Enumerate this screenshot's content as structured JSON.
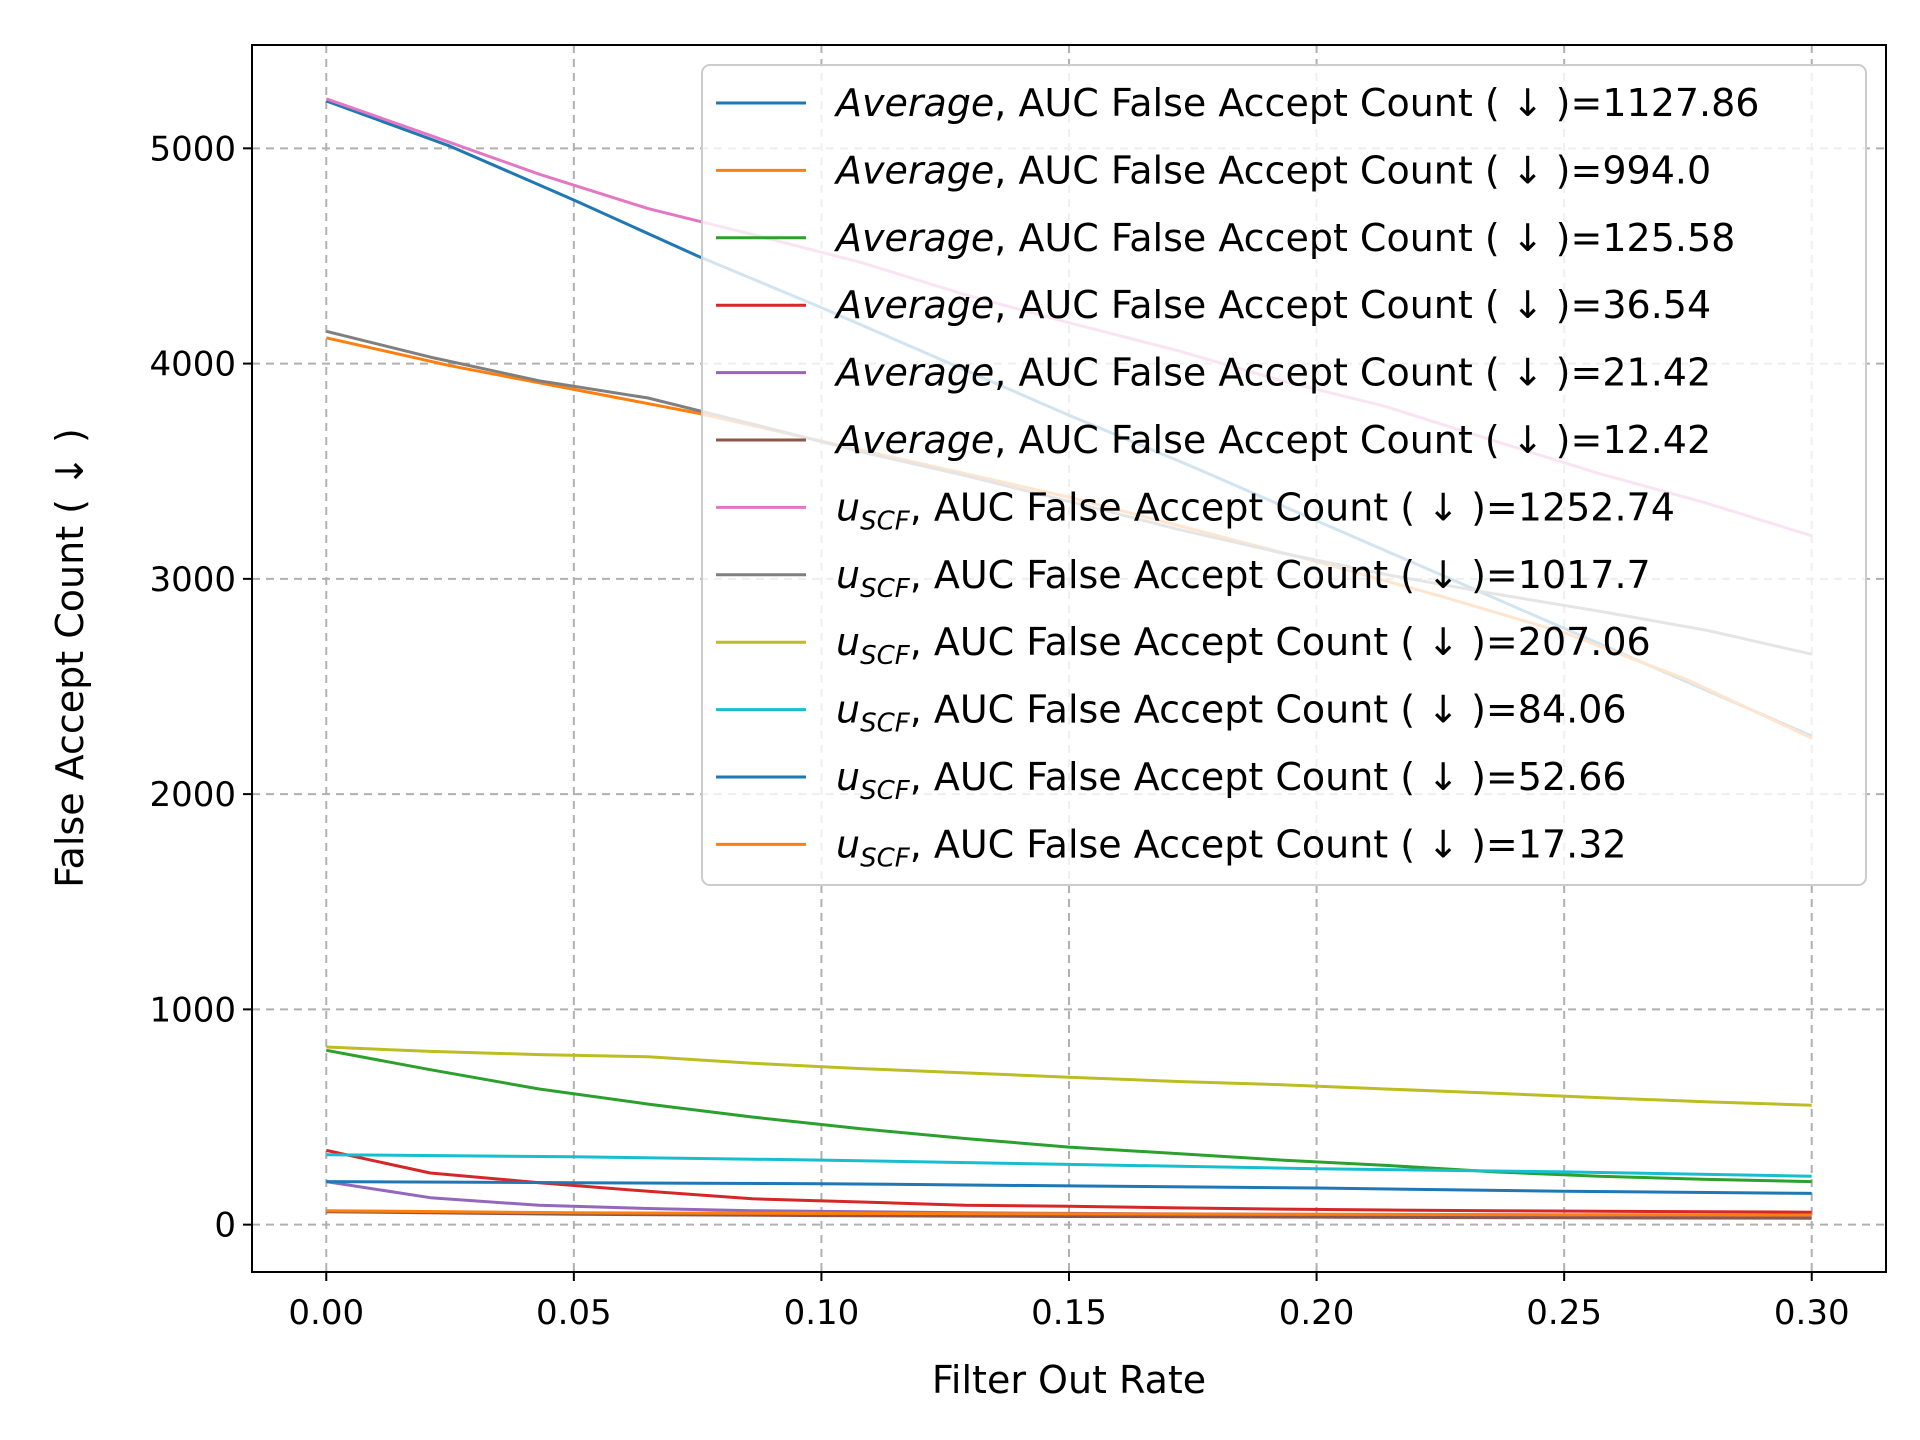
{
  "chart_data": {
    "type": "line",
    "xlabel": "Filter Out Rate",
    "ylabel": "False Accept Count ( ↓ )",
    "xlim": [
      -0.015,
      0.315
    ],
    "ylim": [
      -220,
      5480
    ],
    "xticks": [
      0.0,
      0.05,
      0.1,
      0.15,
      0.2,
      0.25,
      0.3
    ],
    "xtick_labels": [
      "0.00",
      "0.05",
      "0.10",
      "0.15",
      "0.20",
      "0.25",
      "0.30"
    ],
    "yticks": [
      0,
      1000,
      2000,
      3000,
      4000,
      5000
    ],
    "ytick_labels": [
      "0",
      "1000",
      "2000",
      "3000",
      "4000",
      "5000"
    ],
    "grid": true,
    "legend_position": "upper-right",
    "series": [
      {
        "prefix": "Average",
        "sub": "",
        "name": ", AUC False Accept Count ( ↓ )=1127.86",
        "color": "#1f77b4",
        "x": [
          0.0,
          0.025,
          0.05,
          0.075,
          0.1,
          0.125,
          0.15,
          0.175,
          0.2,
          0.225,
          0.25,
          0.275,
          0.3
        ],
        "y": [
          5220,
          5010,
          4760,
          4500,
          4260,
          4010,
          3760,
          3520,
          3270,
          3020,
          2770,
          2520,
          2270
        ]
      },
      {
        "prefix": "Average",
        "sub": "",
        "name": ", AUC False Accept Count ( ↓ )=994.0",
        "color": "#ff7f0e",
        "x": [
          0.0,
          0.025,
          0.05,
          0.075,
          0.1,
          0.125,
          0.15,
          0.175,
          0.2,
          0.225,
          0.25,
          0.275,
          0.3
        ],
        "y": [
          4120,
          3990,
          3880,
          3770,
          3640,
          3510,
          3380,
          3230,
          3080,
          2920,
          2750,
          2530,
          2260
        ]
      },
      {
        "prefix": "Average",
        "sub": "",
        "name": ", AUC False Accept Count ( ↓ )=125.58",
        "color": "#2ca02c",
        "x": [
          0.0,
          0.021,
          0.043,
          0.065,
          0.086,
          0.108,
          0.129,
          0.15,
          0.172,
          0.193,
          0.214,
          0.236,
          0.257,
          0.279,
          0.3
        ],
        "y": [
          810,
          720,
          630,
          560,
          500,
          445,
          400,
          360,
          330,
          300,
          275,
          245,
          225,
          210,
          200
        ]
      },
      {
        "prefix": "Average",
        "sub": "",
        "name": ", AUC False Accept Count ( ↓ )=36.54",
        "color": "#d62728",
        "x": [
          0.0,
          0.021,
          0.043,
          0.065,
          0.086,
          0.108,
          0.129,
          0.15,
          0.172,
          0.193,
          0.214,
          0.236,
          0.257,
          0.279,
          0.3
        ],
        "y": [
          345,
          240,
          195,
          155,
          120,
          105,
          90,
          85,
          78,
          72,
          68,
          65,
          62,
          60,
          58
        ]
      },
      {
        "prefix": "Average",
        "sub": "",
        "name": ", AUC False Accept Count ( ↓ )=21.42",
        "color": "#9467bd",
        "x": [
          0.0,
          0.021,
          0.043,
          0.065,
          0.086,
          0.108,
          0.129,
          0.15,
          0.172,
          0.193,
          0.214,
          0.236,
          0.257,
          0.279,
          0.3
        ],
        "y": [
          200,
          125,
          90,
          75,
          65,
          60,
          55,
          52,
          50,
          48,
          46,
          45,
          44,
          43,
          42
        ]
      },
      {
        "prefix": "Average",
        "sub": "",
        "name": ", AUC False Accept Count ( ↓ )=12.42",
        "color": "#8c564b",
        "x": [
          0.0,
          0.05,
          0.1,
          0.15,
          0.2,
          0.25,
          0.3
        ],
        "y": [
          60,
          48,
          42,
          38,
          35,
          32,
          30
        ]
      },
      {
        "prefix": "u",
        "sub": "SCF",
        "name": ", AUC False Accept Count ( ↓ )=1252.74",
        "color": "#e377c2",
        "x": [
          0.0,
          0.021,
          0.043,
          0.065,
          0.086,
          0.108,
          0.129,
          0.15,
          0.172,
          0.193,
          0.214,
          0.236,
          0.257,
          0.279,
          0.3
        ],
        "y": [
          5230,
          5060,
          4880,
          4720,
          4600,
          4470,
          4320,
          4190,
          4060,
          3920,
          3800,
          3640,
          3490,
          3350,
          3200
        ]
      },
      {
        "prefix": "u",
        "sub": "SCF",
        "name": ", AUC False Accept Count ( ↓ )=1017.7",
        "color": "#7f7f7f",
        "x": [
          0.0,
          0.021,
          0.043,
          0.065,
          0.086,
          0.108,
          0.129,
          0.15,
          0.172,
          0.193,
          0.214,
          0.236,
          0.257,
          0.279,
          0.3
        ],
        "y": [
          4150,
          4030,
          3920,
          3840,
          3720,
          3590,
          3480,
          3360,
          3230,
          3120,
          3020,
          2930,
          2850,
          2760,
          2650
        ]
      },
      {
        "prefix": "u",
        "sub": "SCF",
        "name": ", AUC False Accept Count ( ↓ )=207.06",
        "color": "#bcbd22",
        "x": [
          0.0,
          0.021,
          0.043,
          0.065,
          0.086,
          0.108,
          0.129,
          0.15,
          0.172,
          0.193,
          0.214,
          0.236,
          0.257,
          0.279,
          0.3
        ],
        "y": [
          825,
          805,
          790,
          780,
          750,
          725,
          705,
          685,
          665,
          650,
          630,
          610,
          590,
          570,
          555
        ]
      },
      {
        "prefix": "u",
        "sub": "SCF",
        "name": ", AUC False Accept Count ( ↓ )=84.06",
        "color": "#17becf",
        "x": [
          0.0,
          0.05,
          0.1,
          0.15,
          0.2,
          0.25,
          0.3
        ],
        "y": [
          325,
          315,
          300,
          280,
          260,
          245,
          225
        ]
      },
      {
        "prefix": "u",
        "sub": "SCF",
        "name": ", AUC False Accept Count ( ↓ )=52.66",
        "color": "#1f77b4",
        "x": [
          0.0,
          0.05,
          0.1,
          0.15,
          0.2,
          0.25,
          0.3
        ],
        "y": [
          200,
          195,
          190,
          180,
          170,
          155,
          145
        ]
      },
      {
        "prefix": "u",
        "sub": "SCF",
        "name": ", AUC False Accept Count ( ↓ )=17.32",
        "color": "#ff7f0e",
        "x": [
          0.0,
          0.05,
          0.1,
          0.15,
          0.2,
          0.25,
          0.3
        ],
        "y": [
          65,
          55,
          52,
          50,
          48,
          46,
          45
        ]
      }
    ]
  }
}
